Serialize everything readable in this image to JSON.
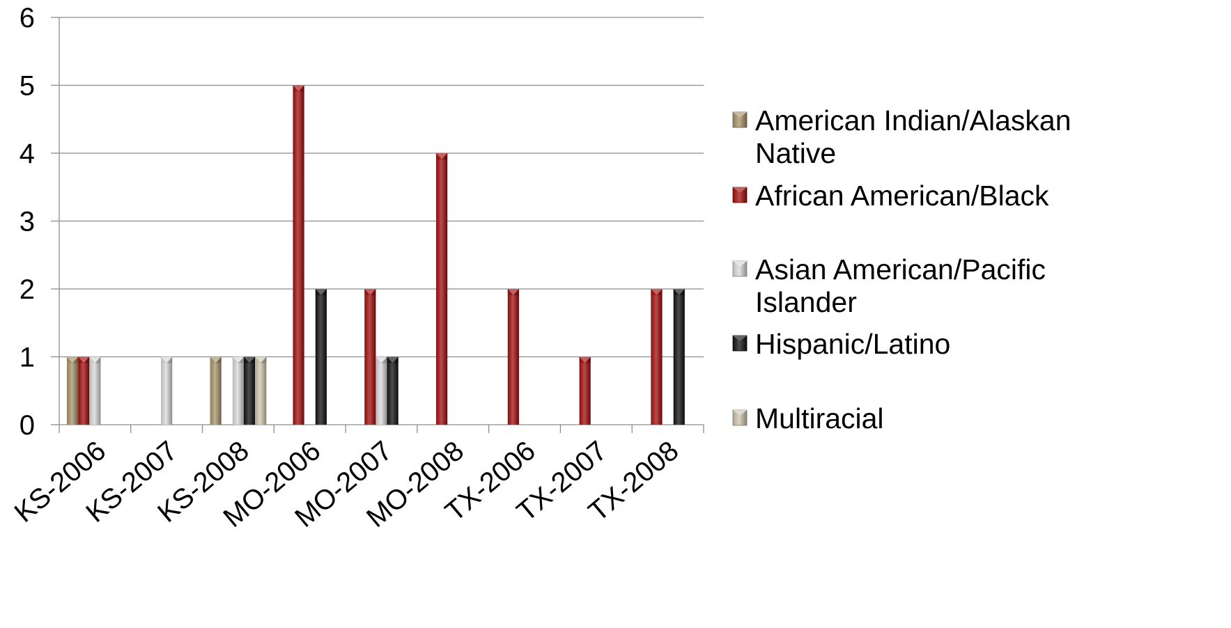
{
  "chart_data": {
    "type": "bar",
    "title": "",
    "xlabel": "",
    "ylabel": "",
    "ylim": [
      0,
      6
    ],
    "yticks": [
      "0",
      "1",
      "2",
      "3",
      "4",
      "5",
      "6"
    ],
    "grid": true,
    "legend_position": "right",
    "categories": [
      "KS-2006",
      "KS-2007",
      "KS-2008",
      "MO-2006",
      "MO-2007",
      "MO-2008",
      "TX-2006",
      "TX-2007",
      "TX-2008"
    ],
    "series": [
      {
        "name": "American Indian/Alaskan Native",
        "legend_lines": [
          "American Indian/Alaskan",
          "Native"
        ],
        "color": "#a8946a",
        "values": [
          1,
          0,
          1,
          0,
          0,
          0,
          0,
          0,
          0
        ]
      },
      {
        "name": "African American/Black",
        "legend_lines": [
          "African American/Black"
        ],
        "color": "#a30d0d",
        "values": [
          1,
          0,
          0,
          5,
          2,
          4,
          2,
          1,
          2
        ]
      },
      {
        "name": "Asian American/Pacific Islander",
        "legend_lines": [
          "Asian American/Pacific",
          "Islander"
        ],
        "color": "#d9d9d9",
        "values": [
          1,
          1,
          1,
          0,
          1,
          0,
          0,
          0,
          0
        ]
      },
      {
        "name": "Hispanic/Latino",
        "legend_lines": [
          "Hispanic/Latino"
        ],
        "color": "#111111",
        "values": [
          0,
          0,
          1,
          2,
          1,
          0,
          0,
          0,
          2
        ]
      },
      {
        "name": "Multiracial",
        "legend_lines": [
          "Multiracial"
        ],
        "color": "#cfc6b0",
        "values": [
          0,
          0,
          1,
          0,
          0,
          0,
          0,
          0,
          0
        ]
      }
    ]
  }
}
